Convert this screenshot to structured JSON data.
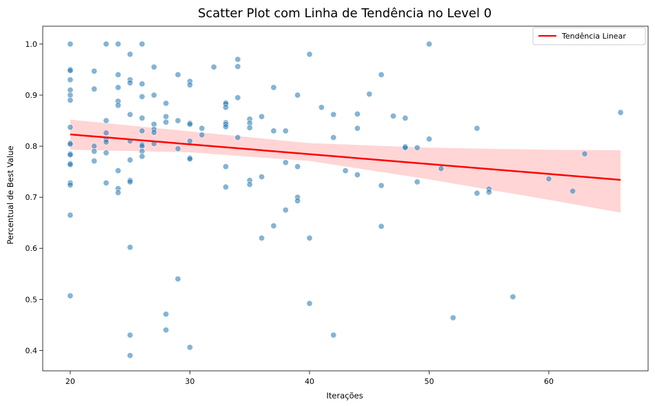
{
  "chart_data": {
    "type": "scatter",
    "title": "Scatter Plot com Linha de Tendência no Level 0",
    "xlabel": "Iterações",
    "ylabel": "Percentual de Best Value",
    "xlim": [
      17.7,
      68.3
    ],
    "ylim": [
      0.36,
      1.035
    ],
    "xticks": [
      20,
      30,
      40,
      50,
      60
    ],
    "yticks": [
      0.4,
      0.5,
      0.6,
      0.7,
      0.8,
      0.9,
      1.0
    ],
    "xtick_labels": [
      "20",
      "30",
      "40",
      "50",
      "60"
    ],
    "ytick_labels": [
      "0.4",
      "0.5",
      "0.6",
      "0.7",
      "0.8",
      "0.9",
      "1.0"
    ],
    "grid": false,
    "legend": {
      "position": "top-right",
      "entries": [
        "Tendência Linear"
      ]
    },
    "colors": {
      "points": "#1f77b4",
      "trend": "#ff0000",
      "band": "#ffb3b3"
    },
    "points": [
      {
        "x": 20,
        "y": 1.0
      },
      {
        "x": 20,
        "y": 0.95
      },
      {
        "x": 20,
        "y": 0.948
      },
      {
        "x": 20,
        "y": 0.93
      },
      {
        "x": 20,
        "y": 0.91
      },
      {
        "x": 20,
        "y": 0.9
      },
      {
        "x": 20,
        "y": 0.89
      },
      {
        "x": 20,
        "y": 0.837
      },
      {
        "x": 20,
        "y": 0.806
      },
      {
        "x": 20,
        "y": 0.804
      },
      {
        "x": 20,
        "y": 0.785
      },
      {
        "x": 20,
        "y": 0.783
      },
      {
        "x": 20,
        "y": 0.766
      },
      {
        "x": 20,
        "y": 0.764
      },
      {
        "x": 20,
        "y": 0.728
      },
      {
        "x": 20,
        "y": 0.724
      },
      {
        "x": 20,
        "y": 0.665
      },
      {
        "x": 20,
        "y": 0.507
      },
      {
        "x": 22,
        "y": 0.947
      },
      {
        "x": 22,
        "y": 0.912
      },
      {
        "x": 22,
        "y": 0.8
      },
      {
        "x": 22,
        "y": 0.79
      },
      {
        "x": 22,
        "y": 0.771
      },
      {
        "x": 23,
        "y": 1.0
      },
      {
        "x": 23,
        "y": 0.85
      },
      {
        "x": 23,
        "y": 0.826
      },
      {
        "x": 23,
        "y": 0.813
      },
      {
        "x": 23,
        "y": 0.808
      },
      {
        "x": 23,
        "y": 0.787
      },
      {
        "x": 23,
        "y": 0.728
      },
      {
        "x": 24,
        "y": 1.0
      },
      {
        "x": 24,
        "y": 0.94
      },
      {
        "x": 24,
        "y": 0.915
      },
      {
        "x": 24,
        "y": 0.888
      },
      {
        "x": 24,
        "y": 0.88
      },
      {
        "x": 24,
        "y": 0.752
      },
      {
        "x": 24,
        "y": 0.717
      },
      {
        "x": 24,
        "y": 0.709
      },
      {
        "x": 25,
        "y": 0.98
      },
      {
        "x": 25,
        "y": 0.93
      },
      {
        "x": 25,
        "y": 0.924
      },
      {
        "x": 25,
        "y": 0.862
      },
      {
        "x": 25,
        "y": 0.81
      },
      {
        "x": 25,
        "y": 0.773
      },
      {
        "x": 25,
        "y": 0.733
      },
      {
        "x": 25,
        "y": 0.73
      },
      {
        "x": 25,
        "y": 0.602
      },
      {
        "x": 25,
        "y": 0.43
      },
      {
        "x": 25,
        "y": 0.39
      },
      {
        "x": 26,
        "y": 1.0
      },
      {
        "x": 26,
        "y": 0.922
      },
      {
        "x": 26,
        "y": 0.897
      },
      {
        "x": 26,
        "y": 0.855
      },
      {
        "x": 26,
        "y": 0.83
      },
      {
        "x": 26,
        "y": 0.803
      },
      {
        "x": 26,
        "y": 0.8
      },
      {
        "x": 26,
        "y": 0.79
      },
      {
        "x": 26,
        "y": 0.78
      },
      {
        "x": 27,
        "y": 0.955
      },
      {
        "x": 27,
        "y": 0.9
      },
      {
        "x": 27,
        "y": 0.843
      },
      {
        "x": 27,
        "y": 0.833
      },
      {
        "x": 27,
        "y": 0.827
      },
      {
        "x": 27,
        "y": 0.805
      },
      {
        "x": 28,
        "y": 0.884
      },
      {
        "x": 28,
        "y": 0.858
      },
      {
        "x": 28,
        "y": 0.847
      },
      {
        "x": 28,
        "y": 0.471
      },
      {
        "x": 28,
        "y": 0.44
      },
      {
        "x": 29,
        "y": 0.94
      },
      {
        "x": 29,
        "y": 0.85
      },
      {
        "x": 29,
        "y": 0.795
      },
      {
        "x": 29,
        "y": 0.54
      },
      {
        "x": 30,
        "y": 0.927
      },
      {
        "x": 30,
        "y": 0.92
      },
      {
        "x": 30,
        "y": 0.845
      },
      {
        "x": 30,
        "y": 0.843
      },
      {
        "x": 30,
        "y": 0.81
      },
      {
        "x": 30,
        "y": 0.777
      },
      {
        "x": 30,
        "y": 0.775
      },
      {
        "x": 30,
        "y": 0.406
      },
      {
        "x": 31,
        "y": 0.835
      },
      {
        "x": 31,
        "y": 0.822
      },
      {
        "x": 32,
        "y": 0.955
      },
      {
        "x": 33,
        "y": 0.885
      },
      {
        "x": 33,
        "y": 0.883
      },
      {
        "x": 33,
        "y": 0.876
      },
      {
        "x": 33,
        "y": 0.846
      },
      {
        "x": 33,
        "y": 0.843
      },
      {
        "x": 33,
        "y": 0.838
      },
      {
        "x": 33,
        "y": 0.76
      },
      {
        "x": 33,
        "y": 0.72
      },
      {
        "x": 34,
        "y": 0.97
      },
      {
        "x": 34,
        "y": 0.956
      },
      {
        "x": 34,
        "y": 0.895
      },
      {
        "x": 34,
        "y": 0.817
      },
      {
        "x": 35,
        "y": 0.853
      },
      {
        "x": 35,
        "y": 0.845
      },
      {
        "x": 35,
        "y": 0.836
      },
      {
        "x": 35,
        "y": 0.733
      },
      {
        "x": 35,
        "y": 0.725
      },
      {
        "x": 36,
        "y": 0.858
      },
      {
        "x": 36,
        "y": 0.74
      },
      {
        "x": 36,
        "y": 0.62
      },
      {
        "x": 37,
        "y": 0.915
      },
      {
        "x": 37,
        "y": 0.83
      },
      {
        "x": 37,
        "y": 0.644
      },
      {
        "x": 38,
        "y": 0.83
      },
      {
        "x": 38,
        "y": 0.768
      },
      {
        "x": 38,
        "y": 0.675
      },
      {
        "x": 39,
        "y": 0.9
      },
      {
        "x": 39,
        "y": 0.76
      },
      {
        "x": 39,
        "y": 0.7
      },
      {
        "x": 39,
        "y": 0.693
      },
      {
        "x": 40,
        "y": 0.98
      },
      {
        "x": 40,
        "y": 0.62
      },
      {
        "x": 40,
        "y": 0.492
      },
      {
        "x": 41,
        "y": 0.876
      },
      {
        "x": 42,
        "y": 0.862
      },
      {
        "x": 42,
        "y": 0.817
      },
      {
        "x": 42,
        "y": 0.43
      },
      {
        "x": 43,
        "y": 0.752
      },
      {
        "x": 44,
        "y": 0.863
      },
      {
        "x": 44,
        "y": 0.835
      },
      {
        "x": 44,
        "y": 0.744
      },
      {
        "x": 45,
        "y": 0.902
      },
      {
        "x": 46,
        "y": 0.94
      },
      {
        "x": 46,
        "y": 0.723
      },
      {
        "x": 46,
        "y": 0.643
      },
      {
        "x": 47,
        "y": 0.859
      },
      {
        "x": 48,
        "y": 0.855
      },
      {
        "x": 48,
        "y": 0.799
      },
      {
        "x": 48,
        "y": 0.797
      },
      {
        "x": 49,
        "y": 0.797
      },
      {
        "x": 49,
        "y": 0.73
      },
      {
        "x": 50,
        "y": 1.0
      },
      {
        "x": 50,
        "y": 0.814
      },
      {
        "x": 51,
        "y": 0.756
      },
      {
        "x": 52,
        "y": 0.464
      },
      {
        "x": 54,
        "y": 0.835
      },
      {
        "x": 54,
        "y": 0.708
      },
      {
        "x": 55,
        "y": 0.716
      },
      {
        "x": 55,
        "y": 0.71
      },
      {
        "x": 57,
        "y": 0.505
      },
      {
        "x": 60,
        "y": 0.736
      },
      {
        "x": 62,
        "y": 0.712
      },
      {
        "x": 63,
        "y": 0.785
      },
      {
        "x": 66,
        "y": 0.866
      }
    ],
    "trend_line": {
      "name": "Tendência Linear",
      "x": [
        20,
        66
      ],
      "y": [
        0.823,
        0.734
      ]
    },
    "confidence_band": {
      "x": [
        20,
        30,
        40,
        50,
        60,
        66
      ],
      "upper": [
        0.852,
        0.829,
        0.806,
        0.797,
        0.793,
        0.792
      ],
      "lower": [
        0.793,
        0.788,
        0.771,
        0.735,
        0.695,
        0.67
      ]
    }
  }
}
